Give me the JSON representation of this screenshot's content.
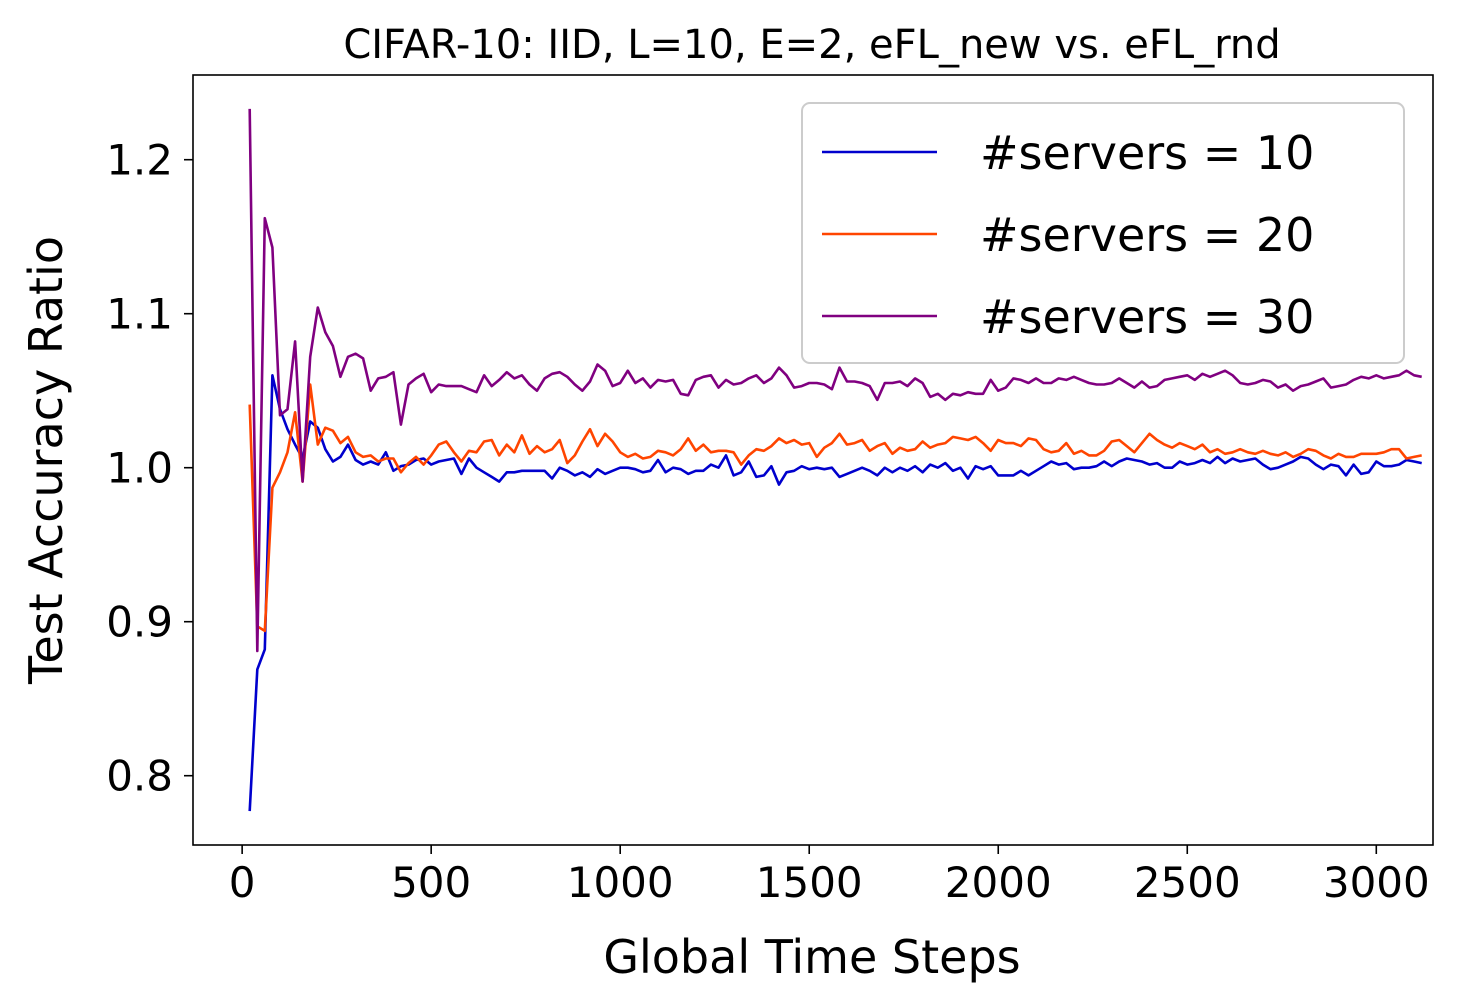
{
  "chart_data": {
    "type": "line",
    "title": "CIFAR-10: IID, L=10, E=2, eFL_new vs. eFL_rnd",
    "xlabel": "Global Time Steps",
    "ylabel": "Test Accuracy Ratio",
    "xlim": [
      -130,
      3150
    ],
    "ylim": [
      0.755,
      1.255
    ],
    "xticks": [
      0,
      500,
      1000,
      1500,
      2000,
      2500,
      3000
    ],
    "yticks": [
      0.8,
      0.9,
      1.0,
      1.1,
      1.2
    ],
    "ytick_labels": [
      "0.8",
      "0.9",
      "1.0",
      "1.1",
      "1.2"
    ],
    "grid": false,
    "legend_position": "top-right",
    "x_start": 20,
    "x_step": 20,
    "series": [
      {
        "name": "#servers = 10",
        "color": "#0000cd",
        "values": [
          0.777,
          0.869,
          0.882,
          1.06,
          1.038,
          1.025,
          1.015,
          1.006,
          1.03,
          1.026,
          1.012,
          1.004,
          1.007,
          1.015,
          1.005,
          1.002,
          1.004,
          1.002,
          1.01,
          0.998,
          1.001,
          1.002,
          1.005,
          1.006,
          1.002,
          1.004,
          1.005,
          1.006,
          0.996,
          1.006,
          1.0,
          0.997,
          0.994,
          0.991,
          0.997,
          0.997,
          0.998,
          0.998,
          0.998,
          0.998,
          0.993,
          1.0,
          0.998,
          0.995,
          0.997,
          0.994,
          0.999,
          0.996,
          0.998,
          1.0,
          1.0,
          0.999,
          0.997,
          0.998,
          1.005,
          0.997,
          1.0,
          0.999,
          0.996,
          0.998,
          0.998,
          1.002,
          1.0,
          1.008,
          0.995,
          0.997,
          1.004,
          0.994,
          0.995,
          1.001,
          0.989,
          0.997,
          0.998,
          1.001,
          0.999,
          1.0,
          0.999,
          1.0,
          0.994,
          0.996,
          0.998,
          1.0,
          0.998,
          0.995,
          1.0,
          0.997,
          1.0,
          0.998,
          1.001,
          0.997,
          1.002,
          1.0,
          1.003,
          0.998,
          1.0,
          0.993,
          1.001,
          0.999,
          1.001,
          0.995,
          0.995,
          0.995,
          0.998,
          0.995,
          0.998,
          1.001,
          1.004,
          1.002,
          1.003,
          0.999,
          1.0,
          1.0,
          1.001,
          1.004,
          1.001,
          1.004,
          1.006,
          1.005,
          1.004,
          1.002,
          1.003,
          1.0,
          1.0,
          1.004,
          1.002,
          1.003,
          1.005,
          1.003,
          1.007,
          1.003,
          1.006,
          1.004,
          1.005,
          1.006,
          1.002,
          0.999,
          1.0,
          1.002,
          1.004,
          1.007,
          1.006,
          1.002,
          0.999,
          1.002,
          1.001,
          0.995,
          1.002,
          0.996,
          0.997,
          1.004,
          1.001,
          1.001,
          1.002,
          1.005,
          1.004,
          1.003
        ]
      },
      {
        "name": "#servers = 20",
        "color": "#ff4500",
        "values": [
          1.041,
          0.897,
          0.894,
          0.987,
          0.997,
          1.01,
          1.036,
          0.991,
          1.054,
          1.015,
          1.026,
          1.024,
          1.016,
          1.02,
          1.01,
          1.007,
          1.008,
          1.004,
          1.006,
          1.006,
          0.997,
          1.003,
          1.007,
          1.002,
          1.008,
          1.015,
          1.017,
          1.01,
          1.004,
          1.011,
          1.01,
          1.017,
          1.018,
          1.008,
          1.015,
          1.01,
          1.021,
          1.009,
          1.014,
          1.01,
          1.012,
          1.018,
          1.003,
          1.008,
          1.017,
          1.025,
          1.014,
          1.022,
          1.017,
          1.01,
          1.007,
          1.009,
          1.006,
          1.007,
          1.011,
          1.01,
          1.008,
          1.012,
          1.019,
          1.011,
          1.015,
          1.01,
          1.011,
          1.011,
          1.01,
          1.002,
          1.008,
          1.012,
          1.011,
          1.014,
          1.019,
          1.016,
          1.018,
          1.015,
          1.016,
          1.007,
          1.013,
          1.016,
          1.022,
          1.015,
          1.016,
          1.018,
          1.011,
          1.014,
          1.016,
          1.009,
          1.013,
          1.011,
          1.012,
          1.017,
          1.013,
          1.015,
          1.016,
          1.02,
          1.019,
          1.018,
          1.02,
          1.016,
          1.011,
          1.018,
          1.016,
          1.016,
          1.014,
          1.019,
          1.018,
          1.012,
          1.01,
          1.011,
          1.016,
          1.009,
          1.011,
          1.008,
          1.008,
          1.011,
          1.017,
          1.018,
          1.014,
          1.01,
          1.016,
          1.022,
          1.018,
          1.015,
          1.013,
          1.016,
          1.014,
          1.012,
          1.015,
          1.01,
          1.012,
          1.009,
          1.01,
          1.012,
          1.01,
          1.009,
          1.011,
          1.009,
          1.008,
          1.01,
          1.007,
          1.009,
          1.012,
          1.011,
          1.008,
          1.006,
          1.009,
          1.007,
          1.007,
          1.009,
          1.009,
          1.009,
          1.01,
          1.012,
          1.012,
          1.006,
          1.007,
          1.008
        ]
      },
      {
        "name": "#servers = 30",
        "color": "#800080",
        "values": [
          1.233,
          0.881,
          1.162,
          1.143,
          1.034,
          1.038,
          1.082,
          0.991,
          1.072,
          1.104,
          1.088,
          1.079,
          1.059,
          1.072,
          1.074,
          1.071,
          1.05,
          1.058,
          1.059,
          1.062,
          1.028,
          1.054,
          1.058,
          1.061,
          1.049,
          1.054,
          1.053,
          1.053,
          1.053,
          1.051,
          1.049,
          1.06,
          1.053,
          1.057,
          1.062,
          1.058,
          1.06,
          1.054,
          1.05,
          1.058,
          1.061,
          1.062,
          1.059,
          1.054,
          1.05,
          1.056,
          1.067,
          1.063,
          1.053,
          1.055,
          1.063,
          1.055,
          1.058,
          1.052,
          1.057,
          1.056,
          1.057,
          1.048,
          1.047,
          1.057,
          1.059,
          1.06,
          1.052,
          1.057,
          1.054,
          1.055,
          1.058,
          1.06,
          1.055,
          1.058,
          1.065,
          1.06,
          1.052,
          1.053,
          1.055,
          1.055,
          1.054,
          1.051,
          1.065,
          1.056,
          1.056,
          1.055,
          1.053,
          1.044,
          1.055,
          1.055,
          1.056,
          1.053,
          1.058,
          1.055,
          1.046,
          1.048,
          1.044,
          1.048,
          1.047,
          1.049,
          1.048,
          1.048,
          1.057,
          1.05,
          1.052,
          1.058,
          1.057,
          1.055,
          1.058,
          1.055,
          1.055,
          1.058,
          1.057,
          1.059,
          1.057,
          1.055,
          1.054,
          1.054,
          1.055,
          1.058,
          1.055,
          1.052,
          1.056,
          1.052,
          1.053,
          1.057,
          1.058,
          1.059,
          1.06,
          1.057,
          1.061,
          1.059,
          1.061,
          1.063,
          1.06,
          1.055,
          1.054,
          1.055,
          1.057,
          1.056,
          1.052,
          1.054,
          1.05,
          1.053,
          1.054,
          1.056,
          1.058,
          1.052,
          1.053,
          1.054,
          1.057,
          1.059,
          1.058,
          1.06,
          1.058,
          1.059,
          1.06,
          1.063,
          1.06,
          1.059
        ]
      }
    ]
  }
}
